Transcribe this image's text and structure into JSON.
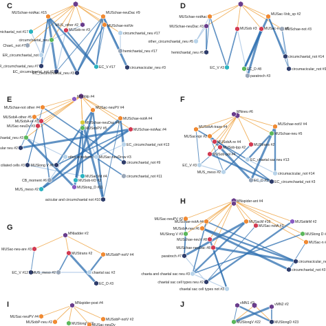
{
  "colors": {
    "hub_edge": "#f0a94c",
    "main_edge": "#2e6fb0",
    "light_edge": "#a9c6e3",
    "node_purple": "#6a3d8c",
    "node_orange": "#f08a33",
    "node_red": "#d23b52",
    "node_green": "#5cb85c",
    "node_teal": "#2bb3c0",
    "node_navy": "#2f3d6b",
    "node_gray": "#9aa7b8",
    "node_lightblue": "#b9d4ea",
    "node_yellow": "#d8c93a",
    "node_violet": "#8a5cc4"
  },
  "panels": [
    {
      "id": "C",
      "letter": "C",
      "labels": [
        "MUSchae-notAac #15",
        "MUSchae-neuDac #9",
        "MUS_other #2",
        "MUSchae-notVe",
        "hemichaetal_not #17",
        "MUSob-re #3",
        "circumchaetal_neu #17",
        "circumchaetal_neu",
        "ChaeL_not #7",
        "ER_circumchaetal_not",
        "hemichaetal_neu #17",
        "noER_circumchaetal_neu #7",
        "EC_V #17",
        "EC_circumchaetal_not #3",
        "EC_circumchaetal_neu #3",
        "circumacicular_neu #3"
      ]
    },
    {
      "id": "D",
      "letter": "D",
      "labels": [
        "MUSchae-notAac",
        "MUSac-Vob_sp #2",
        "MUSchae-neuDac #3",
        "MUSob #3",
        "MUSac-notP #5",
        "MUSchae-not #3",
        "other_circumchaetal_neu #5",
        "hemichaetal_neu #5",
        "circumchaetal_not #14",
        "EC_V #3",
        "EC_D #8",
        "paratroch #3",
        "circumacicular_not #9"
      ]
    },
    {
      "id": "E",
      "letter": "E",
      "labels": [
        "MNoblp #4",
        "MUSchae-not other #4",
        "MUSac-neuPV #4",
        "MUSobA-other #5",
        "MUSchae-notA #4",
        "MUSobA-re #3",
        "MUSchae-neuDac #4",
        "MUSac-neuDv #3",
        "MUSchae-notAac #4",
        "EC_circumchaetal_neu #3",
        "MUSobPV #5",
        "EC_circumchaetal_not #13",
        "acicular and circumacicular neu #2",
        "ciliated cells #3",
        "other ectoderm #2",
        "MUSac-neuDrow #3",
        "circumchaetal_not #9",
        "MUSlong V #8",
        "CB_moment #6",
        "MUSlong_D #11",
        "circumchaetal_not #11",
        "MUS_meso #2",
        "MUSob-trD #2",
        "acicular and circumchaetal not #10",
        "MUSacVid #4"
      ]
    },
    {
      "id": "F",
      "letter": "F",
      "labels": [
        "MNneu #6",
        "MUSobA-trase #4",
        "MUSchae-notV #4",
        "MUSac-npr #2",
        "MUSchae-neu #5",
        "MUSobA-re #4",
        "MUSob-lpp #2",
        "MUStrans #2",
        "MUSob-pol #4",
        "EC_V #3",
        "circumacicular_not #14",
        "EC_chaetal sac neu #13",
        "MUS_meso #2",
        "EC_D #11",
        "EC_circumchaetal_not #3"
      ]
    },
    {
      "id": "G",
      "letter": "G",
      "labels": [
        "MNladder #2",
        "MUSac-neu-are #3",
        "MUStrans #2",
        "MUSobP-notV #4",
        "EC_V #12",
        "MUS_meso #2",
        "chaetal sac #2",
        "EC_D #3"
      ]
    },
    {
      "id": "H",
      "letter": "H",
      "labels": [
        "MNspider-ant #4",
        "MUSac-neuPV #2",
        "MUSchae-notA #4",
        "MUSacM #16",
        "MUSobA-neu #6",
        "MUSac-notA #3",
        "MUSstitrM #2",
        "MUSlong V #3",
        "MUSchae-neuV #8",
        "MUSlong D #2",
        "MUSchae-neuDac #8",
        "MUSac-n #8",
        "paratroch #7",
        "circumacicular_not #2",
        "circumchaetal_not #3",
        "chaeta and chaetal sac neu #3",
        "chaetal sac cell types neu #2",
        "chaetal sac cell types not #3"
      ]
    },
    {
      "id": "I",
      "letter": "I",
      "labels": [
        "MNspider-post #4",
        "MUSac-neuPV #4",
        "MUSobP-neu #2",
        "MUSobP-notV #2",
        "MUSlongV #3",
        "MUSac-neuDv"
      ]
    },
    {
      "id": "J",
      "letter": "J",
      "labels": [
        "vMN1 #2",
        "vMN2 #2",
        "MUSlongV #22",
        "MUSlongD #23"
      ]
    }
  ]
}
